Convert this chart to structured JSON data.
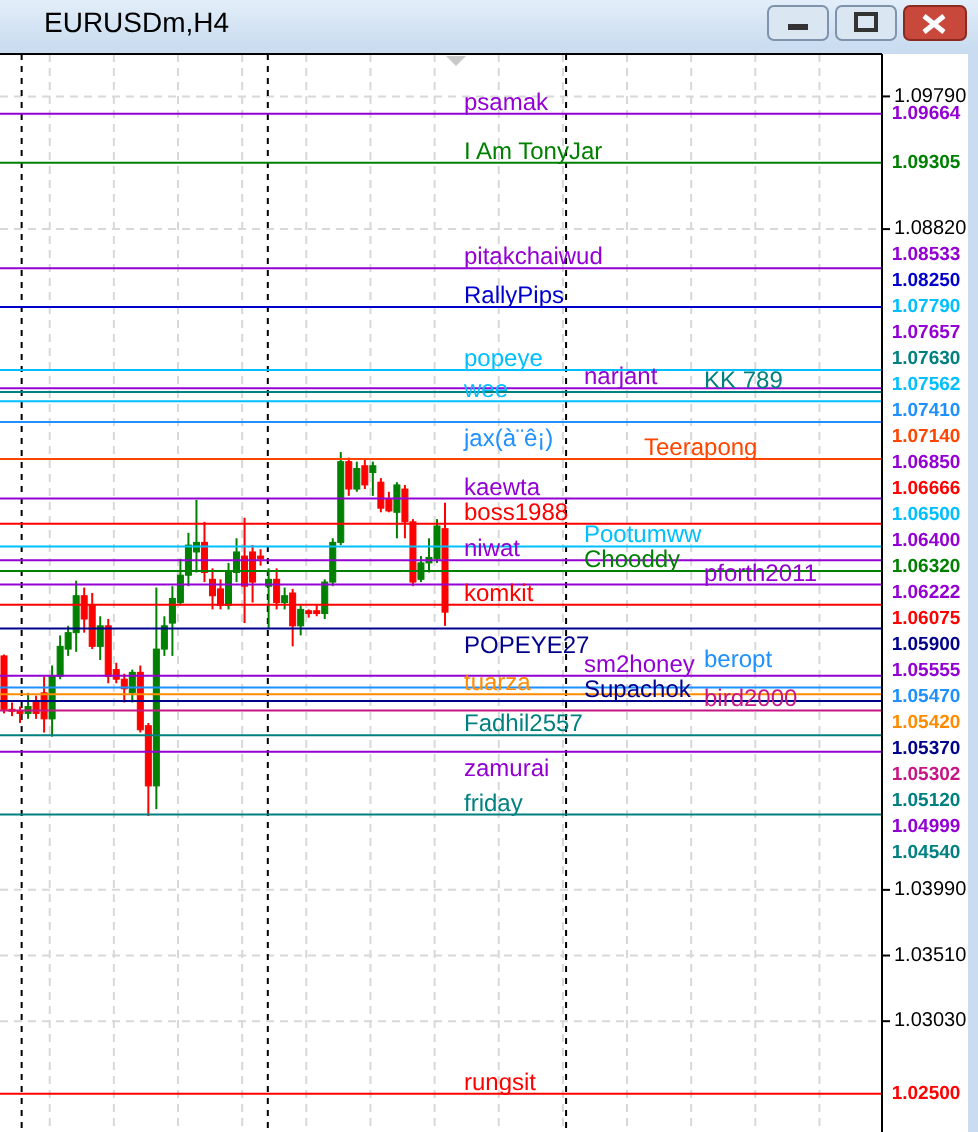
{
  "chart_data": {
    "type": "candlestick",
    "title": "EURUSDm,H4",
    "categories": [
      null,
      null,
      null,
      null,
      null,
      null,
      null,
      null,
      null,
      null,
      null,
      null,
      null,
      null,
      null,
      null,
      null,
      null,
      null,
      null,
      null,
      null,
      null,
      null,
      null,
      null,
      null,
      null,
      null,
      null,
      null,
      null,
      null,
      null,
      null,
      null,
      null,
      null,
      null,
      null,
      null,
      null,
      null,
      null,
      null,
      null,
      null,
      null,
      null,
      null,
      null,
      null,
      null,
      null,
      null,
      null,
      null,
      null,
      null,
      null,
      null,
      null,
      null,
      null,
      null,
      null,
      null,
      null,
      null,
      null,
      null,
      null,
      null,
      null,
      null,
      null,
      null,
      null,
      null,
      null,
      null,
      null,
      null,
      null,
      null,
      null,
      null,
      null,
      null,
      null,
      null,
      null,
      null,
      null,
      null,
      null,
      null,
      null,
      null,
      null,
      null,
      null,
      null,
      null,
      null,
      null,
      null,
      null,
      null,
      null
    ],
    "ohlc": [
      [
        1.057,
        1.0571,
        1.0528,
        1.0531
      ],
      [
        1.0531,
        1.0536,
        1.0526,
        1.053
      ],
      [
        1.053,
        1.0533,
        1.0521,
        1.0528
      ],
      [
        1.0528,
        1.0543,
        1.0524,
        1.0533
      ],
      [
        1.0536,
        1.0541,
        1.0524,
        1.0528
      ],
      [
        1.0543,
        1.0555,
        1.0514,
        1.0524
      ],
      [
        1.0524,
        1.0563,
        1.0511,
        1.0555
      ],
      [
        1.0555,
        1.0585,
        1.0553,
        1.0577
      ],
      [
        1.0575,
        1.0592,
        1.057,
        1.0587
      ],
      [
        1.0587,
        1.0625,
        1.0573,
        1.0614
      ],
      [
        1.0614,
        1.062,
        1.0587,
        1.0597
      ],
      [
        1.0607,
        1.0616,
        1.0575,
        1.0577
      ],
      [
        1.0577,
        1.0599,
        1.0567,
        1.0592
      ],
      [
        1.0592,
        1.0597,
        1.055,
        1.0555
      ],
      [
        1.056,
        1.0565,
        1.055,
        1.0553
      ],
      [
        1.0553,
        1.0557,
        1.0536,
        1.0546
      ],
      [
        1.0543,
        1.056,
        1.0536,
        1.0558
      ],
      [
        1.0558,
        1.0563,
        1.0514,
        1.0516
      ],
      [
        1.0519,
        1.0521,
        1.0453,
        1.0475
      ],
      [
        1.0475,
        1.062,
        1.0458,
        1.0575
      ],
      [
        1.0575,
        1.0599,
        1.057,
        1.0592
      ],
      [
        1.0594,
        1.0621,
        1.057,
        1.0612
      ],
      [
        1.0609,
        1.0641,
        1.0607,
        1.0629
      ],
      [
        1.0629,
        1.066,
        1.0621,
        1.0651
      ],
      [
        1.0646,
        1.0684,
        1.0631,
        1.0653
      ],
      [
        1.0653,
        1.0668,
        1.0624,
        1.0631
      ],
      [
        1.0626,
        1.0634,
        1.0604,
        1.0614
      ],
      [
        1.0619,
        1.0626,
        1.0604,
        1.0607
      ],
      [
        1.0607,
        1.0638,
        1.0604,
        1.0631
      ],
      [
        1.0631,
        1.0656,
        1.0624,
        1.0646
      ],
      [
        1.0643,
        1.0671,
        1.0594,
        1.0621
      ],
      [
        1.0646,
        1.0651,
        1.0609,
        1.0624
      ],
      [
        1.0643,
        1.0648,
        1.0636,
        1.0641
      ],
      [
        1.0621,
        1.0634,
        1.059,
        1.0626
      ],
      [
        1.0626,
        1.0634,
        1.0604,
        1.0609
      ],
      [
        1.0609,
        1.062,
        1.0604,
        1.0614
      ],
      [
        1.0616,
        1.0619,
        1.0577,
        1.0592
      ],
      [
        1.0592,
        1.0607,
        1.0585,
        1.0604
      ],
      [
        1.0603,
        1.0604,
        1.0598,
        1.0601
      ],
      [
        1.0603,
        1.0607,
        1.0599,
        1.0601
      ],
      [
        1.0601,
        1.0626,
        1.0597,
        1.0624
      ],
      [
        1.0624,
        1.0656,
        1.0621,
        1.0653
      ],
      [
        1.0653,
        1.0719,
        1.0651,
        1.0712
      ],
      [
        1.0712,
        1.0715,
        1.0687,
        1.0692
      ],
      [
        1.0692,
        1.0712,
        1.069,
        1.0707
      ],
      [
        1.0709,
        1.0714,
        1.0692,
        1.0695
      ],
      [
        1.0704,
        1.0712,
        1.0687,
        1.0709
      ],
      [
        1.0697,
        1.07,
        1.0675,
        1.0678
      ],
      [
        1.0685,
        1.069,
        1.0675,
        1.0676
      ],
      [
        1.0675,
        1.0697,
        1.0656,
        1.0695
      ],
      [
        1.0692,
        1.0695,
        1.0656,
        1.0668
      ],
      [
        1.0668,
        1.067,
        1.0621,
        1.0624
      ],
      [
        1.0626,
        1.0643,
        1.0624,
        1.0638
      ],
      [
        1.0638,
        1.0656,
        1.0631,
        1.0642
      ],
      [
        1.0641,
        1.067,
        1.0638,
        1.0665
      ],
      [
        1.0663,
        1.0682,
        1.0592,
        1.0602
      ],
      null,
      null,
      null,
      null,
      null,
      null,
      null,
      null,
      null,
      null,
      null,
      null,
      null,
      null,
      null,
      null,
      null,
      null,
      null,
      null,
      null,
      null,
      null,
      null,
      null,
      null,
      null,
      null,
      null,
      null,
      null,
      null,
      null,
      null,
      null,
      null,
      null,
      null,
      null,
      null,
      null,
      null,
      null,
      null,
      null,
      null,
      null,
      null,
      null,
      null,
      null,
      null,
      null,
      null
    ],
    "ylim": [
      1.0222,
      1.101
    ],
    "yticks": [
      {
        "value": 1.0303,
        "label": "1.03030"
      },
      {
        "value": 1.0351,
        "label": "1.03510"
      },
      {
        "value": 1.0399,
        "label": "1.03990"
      },
      {
        "value": 1.0882,
        "label": "1.08820"
      },
      {
        "value": 1.0979,
        "label": "1.09790"
      }
    ],
    "grid": true,
    "tick_labels": "y",
    "ref_lines": [
      {
        "axis": "y",
        "value": 1.09664,
        "label": "1.09664",
        "color": "#9400d3"
      },
      {
        "axis": "y",
        "value": 1.09305,
        "label": "1.09305",
        "color": "#008000"
      },
      {
        "axis": "y",
        "value": 1.08533,
        "label": "1.08533",
        "color": "#9400d3"
      },
      {
        "axis": "y",
        "value": 1.0825,
        "label": "1.08250",
        "color": "#0000cd"
      },
      {
        "axis": "y",
        "value": 1.0779,
        "label": "1.07790",
        "color": "#00bfff"
      },
      {
        "axis": "y",
        "value": 1.07657,
        "label": "1.07657",
        "color": "#9400d3"
      },
      {
        "axis": "y",
        "value": 1.0763,
        "label": "1.07630",
        "color": "#008080"
      },
      {
        "axis": "y",
        "value": 1.07562,
        "label": "1.07562",
        "color": "#00bfff"
      },
      {
        "axis": "y",
        "value": 1.0741,
        "label": "1.07410",
        "color": "#1e90ff"
      },
      {
        "axis": "y",
        "value": 1.0714,
        "label": "1.07140",
        "color": "#ff4500"
      },
      {
        "axis": "y",
        "value": 1.0685,
        "label": "1.06850",
        "color": "#9400d3"
      },
      {
        "axis": "y",
        "value": 1.06666,
        "label": "1.06666",
        "color": "#ff0000"
      },
      {
        "axis": "y",
        "value": 1.065,
        "label": "1.06500",
        "color": "#00bfff"
      },
      {
        "axis": "y",
        "value": 1.064,
        "label": "1.06400",
        "color": "#9400d3"
      },
      {
        "axis": "y",
        "value": 1.0632,
        "label": "1.06320",
        "color": "#008000"
      },
      {
        "axis": "y",
        "value": 1.06222,
        "label": "1.06222",
        "color": "#9400d3"
      },
      {
        "axis": "y",
        "value": 1.06075,
        "label": "1.06075",
        "color": "#ff0000"
      },
      {
        "axis": "y",
        "value": 1.059,
        "label": "1.05900",
        "color": "#00008b"
      },
      {
        "axis": "y",
        "value": 1.05555,
        "label": "1.05555",
        "color": "#9400d3"
      },
      {
        "axis": "y",
        "value": 1.0547,
        "label": "1.05470",
        "color": "#1e90ff"
      },
      {
        "axis": "y",
        "value": 1.0542,
        "label": "1.05420",
        "color": "#ff8c00"
      },
      {
        "axis": "y",
        "value": 1.0537,
        "label": "1.05370",
        "color": "#00008b"
      },
      {
        "axis": "y",
        "value": 1.05302,
        "label": "1.05302",
        "color": "#c71585"
      },
      {
        "axis": "y",
        "value": 1.0512,
        "label": "1.05120",
        "color": "#008080"
      },
      {
        "axis": "y",
        "value": 1.04999,
        "label": "1.04999",
        "color": "#9400d3"
      },
      {
        "axis": "y",
        "value": 1.0454,
        "label": "1.04540",
        "color": "#008080"
      },
      {
        "axis": "y",
        "value": 1.025,
        "label": "1.02500",
        "color": "#ff0000"
      }
    ],
    "annotations": [
      {
        "text": "psamak",
        "y": 1.09664
      },
      {
        "text": "I Am TonyJar",
        "y": 1.09305
      },
      {
        "text": "pitakchaiwud",
        "y": 1.08533
      },
      {
        "text": "RallyPips",
        "y": 1.0825
      },
      {
        "text": "popeye",
        "y": 1.0779
      },
      {
        "text": "narjant",
        "y": 1.07657
      },
      {
        "text": "KK 789",
        "y": 1.0763
      },
      {
        "text": "wee",
        "y": 1.07562
      },
      {
        "text": "jax(à¨ê¡)",
        "y": 1.0741
      },
      {
        "text": "Teerapong",
        "y": 1.0714
      },
      {
        "text": "kaewta",
        "y": 1.0685
      },
      {
        "text": "boss1988",
        "y": 1.06666
      },
      {
        "text": "Pootumww",
        "y": 1.065
      },
      {
        "text": "niwat",
        "y": 1.064
      },
      {
        "text": "Chooddy",
        "y": 1.0632
      },
      {
        "text": "pforth2011",
        "y": 1.06222
      },
      {
        "text": "komkit",
        "y": 1.06075
      },
      {
        "text": "POPEYE27",
        "y": 1.059
      },
      {
        "text": "sm2honey",
        "y": 1.05555
      },
      {
        "text": "beropt",
        "y": 1.0547
      },
      {
        "text": "tuarza",
        "y": 1.0542
      },
      {
        "text": "Supachok",
        "y": 1.0537
      },
      {
        "text": "bird2000",
        "y": 1.05302
      },
      {
        "text": "Fadhil2557",
        "y": 1.0512
      },
      {
        "text": "zamurai",
        "y": 1.04999
      },
      {
        "text": "friday",
        "y": 1.0454
      },
      {
        "text": "rungsit",
        "y": 1.025
      }
    ]
  }
}
